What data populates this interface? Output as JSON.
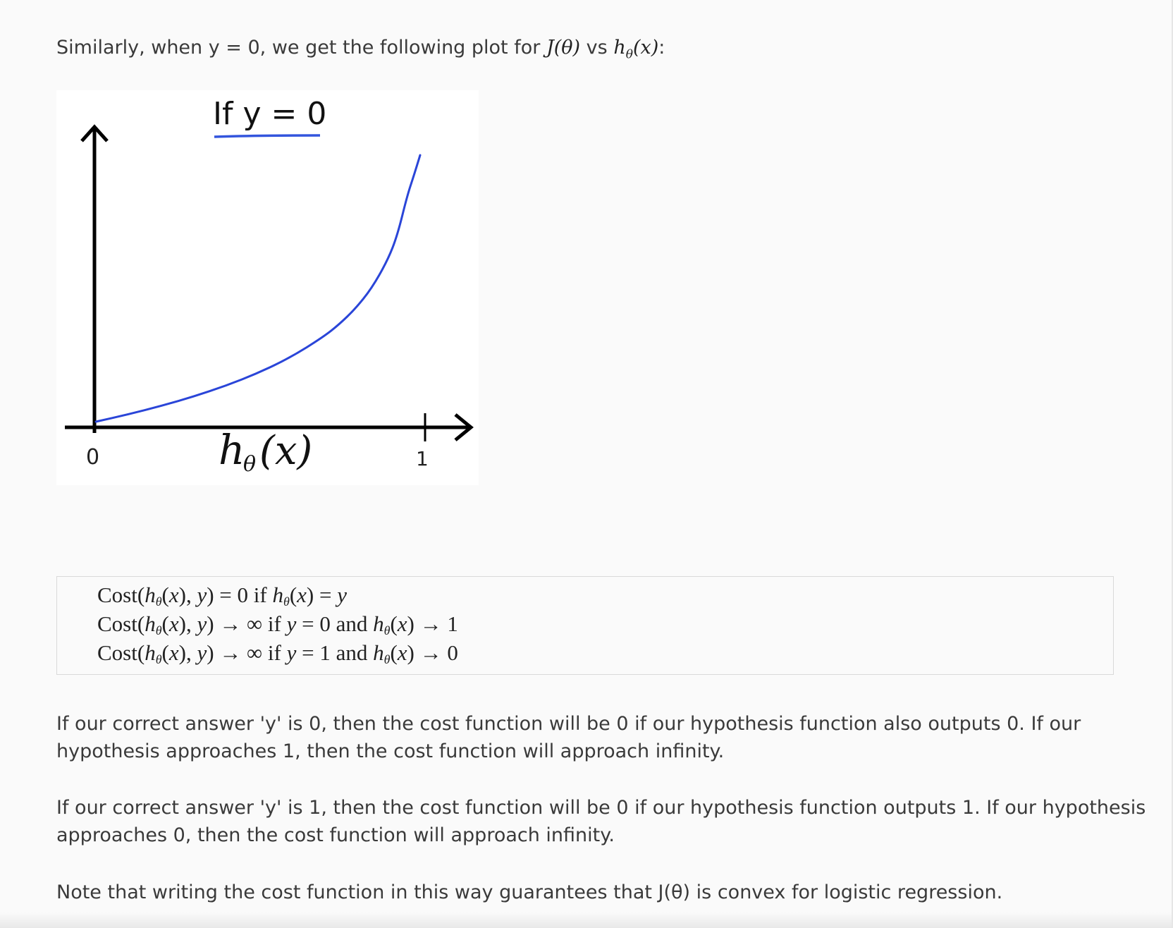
{
  "intro": {
    "prefix": "Similarly, when y = 0, we get the following plot for ",
    "j_theta": "J(θ)",
    "vs": " vs ",
    "h": "h",
    "theta": "θ",
    "x": "(x)",
    "suffix": ":"
  },
  "figure": {
    "title": "If y = 0",
    "origin_label": "0",
    "x_axis_label_h": "h",
    "x_axis_label_theta": "θ",
    "x_axis_label_x": "(x)",
    "one_label": "1",
    "title_underline_color": "#3355dd",
    "curve_color": "#2a45d8",
    "axis_color": "#000000",
    "chart_data": {
      "type": "line",
      "title": "If y = 0",
      "xlabel": "hθ(x)",
      "ylabel": "",
      "xlim": [
        0,
        1
      ],
      "x_ticks": [
        "0",
        "1"
      ],
      "series": [
        {
          "x": [
            0.0,
            0.1,
            0.2,
            0.3,
            0.4,
            0.5,
            0.6,
            0.7,
            0.75,
            0.8,
            0.85,
            0.9,
            0.93,
            0.96,
            0.98,
            1.0
          ],
          "y": [
            0.0,
            0.105,
            0.223,
            0.357,
            0.511,
            0.693,
            0.916,
            1.204,
            1.386,
            1.609,
            1.897,
            2.303,
            2.66,
            3.219,
            3.5,
            3.8
          ]
        }
      ],
      "grid": false,
      "legend": "none"
    }
  },
  "equations": [
    {
      "lhs": "Cost(",
      "rel": " = 0 if ",
      "rhs_pre": "",
      "rhs": " = ",
      "rhs_end": "y"
    },
    {
      "lhs": "Cost(",
      "rel": " → ∞ if ",
      "cond_var": "y",
      "cond": " = 0 and ",
      "rhs": " → 1"
    },
    {
      "lhs": "Cost(",
      "rel": " → ∞ if ",
      "cond_var": "y",
      "cond": " = 1 and ",
      "rhs": " → 0"
    }
  ],
  "paragraphs": {
    "p1_line1": "If our correct answer 'y' is 0, then the cost function will be 0 if our hypothesis function also outputs 0. If our",
    "p1_line2": "hypothesis approaches 1, then the cost function will approach infinity.",
    "p2_line1": "If our correct answer 'y' is 1, then the cost function will be 0 if our hypothesis function outputs 1. If our hypothesis",
    "p2_line2": "approaches 0, then the cost function will approach infinity.",
    "p3": "Note that writing the cost function in this way guarantees that J(θ) is convex for logistic regression."
  }
}
